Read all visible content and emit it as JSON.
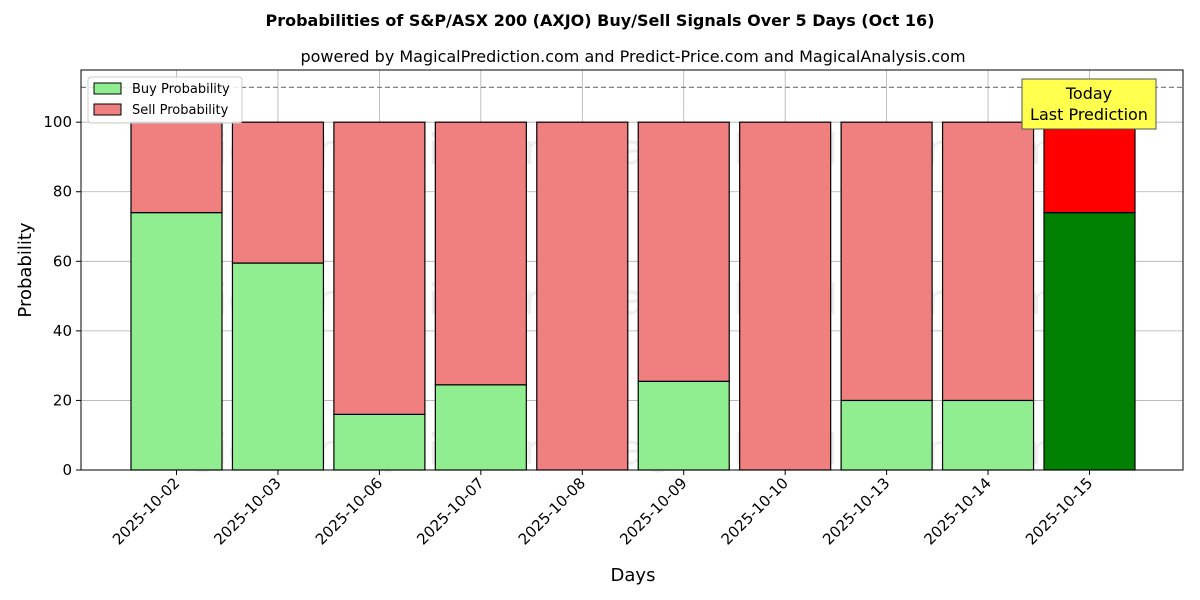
{
  "chart_data": {
    "type": "bar",
    "stacked": true,
    "title": "Probabilities of S&P/ASX 200 (AXJO) Buy/Sell Signals Over 5 Days (Oct 16)",
    "subtitle": "powered by MagicalPrediction.com and Predict-Price.com and MagicalAnalysis.com",
    "xlabel": "Days",
    "ylabel": "Probability",
    "ylim": [
      0,
      115
    ],
    "yticks": [
      0,
      20,
      40,
      60,
      80,
      100
    ],
    "grid": true,
    "legend_position": "top-left",
    "categories": [
      "2025-10-02",
      "2025-10-03",
      "2025-10-06",
      "2025-10-07",
      "2025-10-08",
      "2025-10-09",
      "2025-10-10",
      "2025-10-13",
      "2025-10-14",
      "2025-10-15"
    ],
    "series": [
      {
        "name": "Buy Probability",
        "values": [
          74,
          59.5,
          16,
          24.5,
          0,
          25.5,
          0,
          20,
          20,
          74
        ],
        "color": "#90ee90",
        "highlight_color": "#008000"
      },
      {
        "name": "Sell Probability",
        "values": [
          26,
          40.5,
          84,
          75.5,
          100,
          74.5,
          100,
          80,
          80,
          26
        ],
        "color": "#f08080",
        "highlight_color": "#ff0000"
      }
    ],
    "highlight_index": 9,
    "reference_line": {
      "y": 110,
      "style": "dashed"
    },
    "annotation": {
      "lines": [
        "Today",
        "Last Prediction"
      ],
      "background": "#ffff4d"
    },
    "watermarks": [
      "MagicalAnalysis.com",
      "MagicalPrediction.com"
    ]
  }
}
